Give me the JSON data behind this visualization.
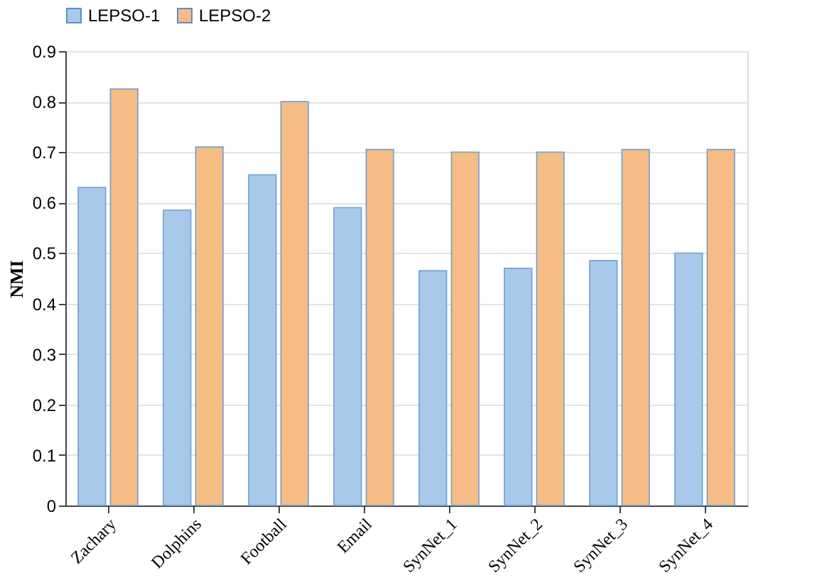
{
  "chart_data": {
    "type": "bar",
    "ylabel": "NMI",
    "categories": [
      "Zachary",
      "Dolphins",
      "Football",
      "Email",
      "SynNet_1",
      "SynNet_2",
      "SynNet_3",
      "SynNet_4"
    ],
    "series": [
      {
        "name": "LEPSO-1",
        "color": "#a9c9ea",
        "values": [
          0.63,
          0.585,
          0.655,
          0.59,
          0.465,
          0.47,
          0.485,
          0.5
        ]
      },
      {
        "name": "LEPSO-2",
        "color": "#f5bc85",
        "values": [
          0.825,
          0.71,
          0.8,
          0.705,
          0.7,
          0.7,
          0.705,
          0.705
        ]
      }
    ],
    "ylim": [
      0,
      0.9
    ],
    "yticks": [
      0,
      0.1,
      0.2,
      0.3,
      0.4,
      0.5,
      0.6,
      0.7,
      0.8,
      0.9
    ],
    "grid": "y",
    "legend": "top"
  }
}
